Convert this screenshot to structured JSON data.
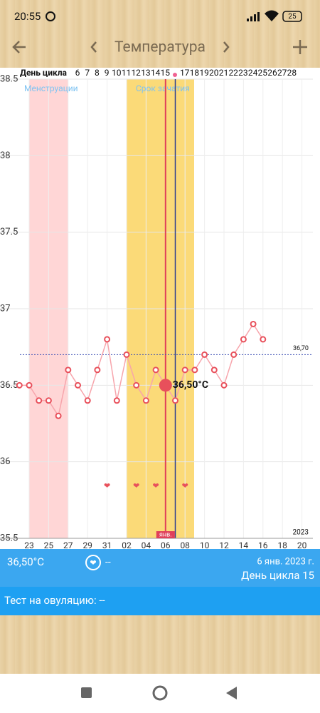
{
  "status_bar": {
    "time": "20:55",
    "battery": "25"
  },
  "header": {
    "title": "Температура"
  },
  "chart_data": {
    "type": "line",
    "cycle_day_label": "День цикла",
    "cycle_days": [
      "6",
      "7",
      "8",
      "9",
      "10",
      "11",
      "12",
      "13",
      "14",
      "15",
      null,
      "17",
      "18",
      "19",
      "20",
      "21",
      "22",
      "23",
      "24",
      "25",
      "26",
      "27",
      "28"
    ],
    "categories": [
      null,
      "23",
      null,
      "25",
      null,
      "27",
      null,
      "29",
      null,
      "31",
      null,
      "02",
      null,
      "04",
      null,
      "06",
      null,
      "08",
      null,
      "10",
      null,
      "12",
      null,
      "14",
      null,
      "16",
      null,
      "18",
      null,
      "20"
    ],
    "values": [
      36.5,
      36.5,
      36.4,
      36.4,
      36.3,
      36.6,
      36.5,
      36.4,
      36.6,
      36.8,
      36.4,
      36.7,
      36.5,
      36.4,
      36.6,
      36.5,
      36.4,
      36.6,
      36.6,
      36.7,
      36.6,
      36.5,
      36.7,
      36.8,
      36.9,
      36.8,
      null,
      null,
      null,
      null
    ],
    "color": "#e8505b",
    "ylim": [
      35.5,
      38.5
    ],
    "yticks": [
      35.5,
      36,
      36.5,
      37,
      37.5,
      38,
      38.5
    ],
    "grid": true,
    "coverline": {
      "value": 36.7,
      "label": "36,70"
    },
    "selected_label": "36,50°C",
    "annotations": [
      "Менструации",
      "Срок зачатия"
    ],
    "month_label": "янв.",
    "year_label": "2023"
  },
  "panel": {
    "temperature": "36,50°C",
    "intercourse": "--",
    "date": "6 янв. 2023 г.",
    "cycle_day": "День цикла 15",
    "ovulation_test": "Тест на овуляцию: --"
  }
}
